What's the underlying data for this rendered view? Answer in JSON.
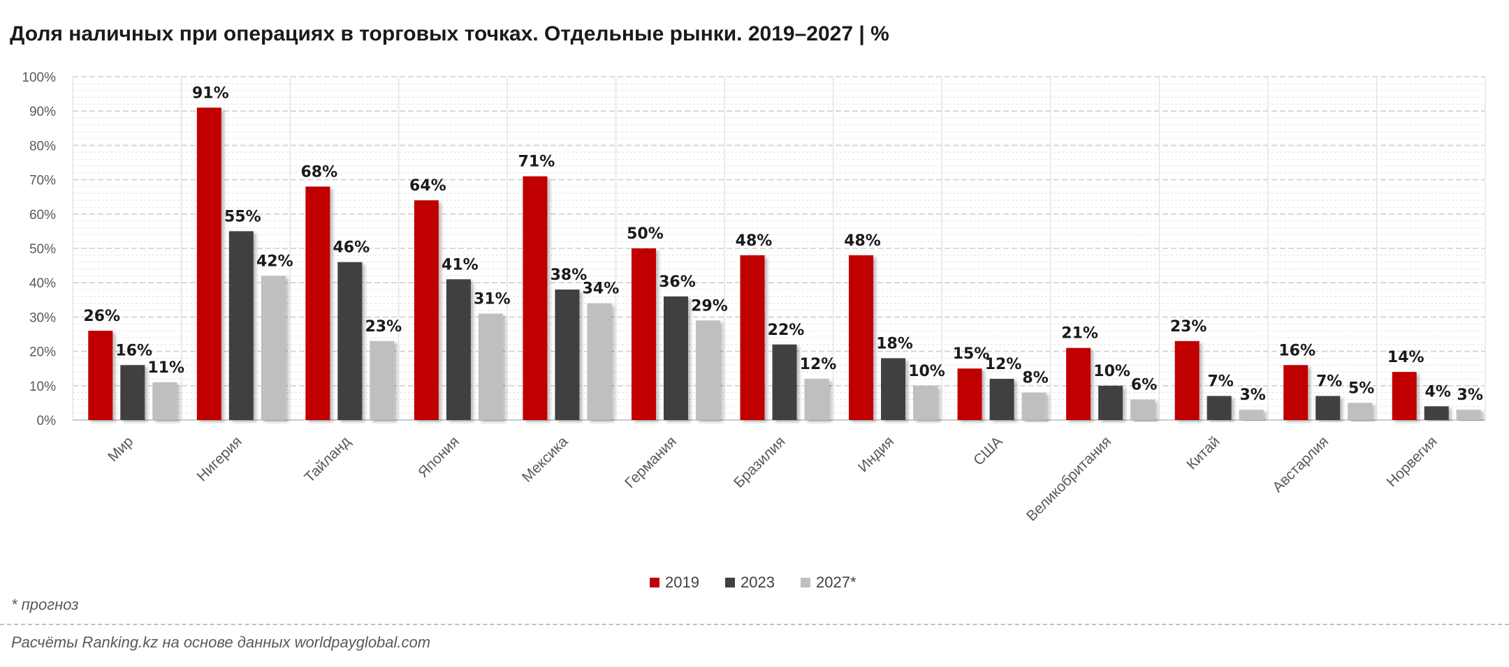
{
  "title": "Доля наличных при операциях в торговых точках. Отдельные рынки. 2019–2027 | %",
  "footnote": "* прогноз",
  "source": "Расчёты Ranking.kz на основе данных worldpayglobal.com",
  "chart_data": {
    "type": "bar",
    "title": "Доля наличных при операциях в торговых точках. Отдельные рынки. 2019–2027 | %",
    "categories": [
      "Мир",
      "Нигерия",
      "Тайланд",
      "Япония",
      "Мексика",
      "Германия",
      "Бразилия",
      "Индия",
      "США",
      "Великобритания",
      "Китай",
      "Австарлия",
      "Норвегия"
    ],
    "series": [
      {
        "name": "2019",
        "color": "#c00000",
        "values": [
          26,
          91,
          68,
          64,
          71,
          50,
          48,
          48,
          15,
          21,
          23,
          16,
          14
        ]
      },
      {
        "name": "2023",
        "color": "#404040",
        "values": [
          16,
          55,
          46,
          41,
          38,
          36,
          22,
          18,
          12,
          10,
          7,
          7,
          4
        ]
      },
      {
        "name": "2027*",
        "color": "#bfbfbf",
        "values": [
          11,
          42,
          23,
          31,
          34,
          29,
          12,
          10,
          8,
          6,
          3,
          5,
          3
        ]
      }
    ],
    "yticks": [
      "0%",
      "10%",
      "20%",
      "30%",
      "40%",
      "50%",
      "60%",
      "70%",
      "80%",
      "90%",
      "100%"
    ],
    "ylim": [
      0,
      100
    ],
    "value_suffix": "%",
    "grid": true,
    "legend_position": "bottom"
  }
}
